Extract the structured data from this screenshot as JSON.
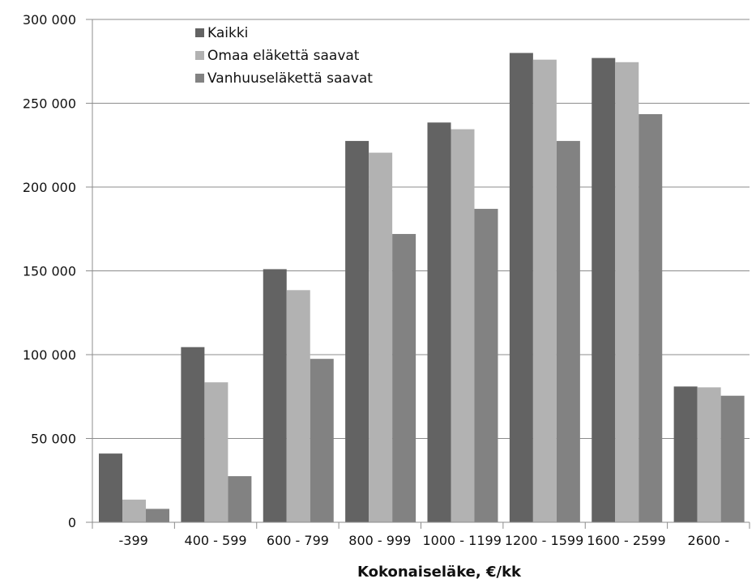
{
  "chart_data": {
    "type": "bar",
    "title": "",
    "xlabel": "Kokonaiseläke, €/kk",
    "ylabel": "",
    "ylim": [
      0,
      300000
    ],
    "yticks": [
      0,
      50000,
      100000,
      150000,
      200000,
      250000,
      300000
    ],
    "ytick_labels": [
      "0",
      "50 000",
      "100 000",
      "150 000",
      "200 000",
      "250 000",
      "300 000"
    ],
    "grid": true,
    "legend_position": "top-left",
    "categories": [
      "-399",
      "400 - 599",
      "600 - 799",
      "800 - 999",
      "1000 - 1199",
      "1200 - 1599",
      "1600 - 2599",
      "2600 -"
    ],
    "series": [
      {
        "name": "Kaikki",
        "color": "#636363",
        "values": [
          41000,
          104500,
          151000,
          227500,
          238500,
          280000,
          277000,
          81000
        ]
      },
      {
        "name": "Omaa eläkettä saavat",
        "color": "#b2b2b2",
        "values": [
          13500,
          83500,
          138500,
          220500,
          234500,
          276000,
          274500,
          80500
        ]
      },
      {
        "name": "Vanhuuseläkettä saavat",
        "color": "#828282",
        "values": [
          8000,
          27500,
          97500,
          172000,
          187000,
          227500,
          243500,
          75500
        ]
      }
    ]
  }
}
